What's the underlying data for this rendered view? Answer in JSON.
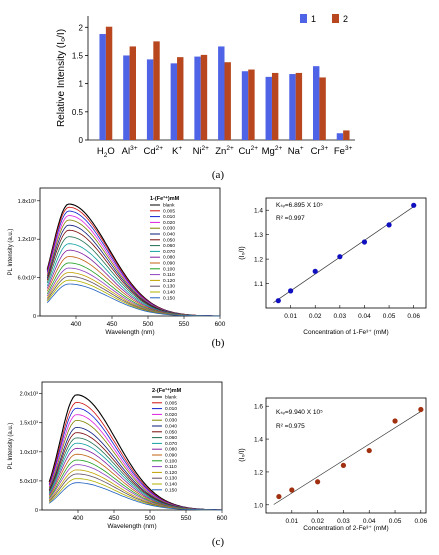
{
  "chart_data": [
    {
      "panel": "(a)",
      "type": "bar",
      "ylabel": "Relative Intensity (I₀/I)",
      "ylim": [
        0,
        2.2
      ],
      "yticks": [
        "0",
        "0.5",
        "1",
        "1.5",
        "2"
      ],
      "categories": [
        "H2O",
        "Al3+",
        "Cd2+",
        "K+",
        "Ni2+",
        "Zn2+",
        "Cu2+",
        "Mg2+",
        "Na+",
        "Cr3+",
        "Fe3+"
      ],
      "category_parts": [
        [
          "H",
          "2",
          "O",
          ""
        ],
        [
          "Al",
          "",
          "",
          "3+"
        ],
        [
          "Cd",
          "",
          "",
          "2+"
        ],
        [
          "K",
          "",
          "",
          "+"
        ],
        [
          "Ni",
          "",
          "",
          "2+"
        ],
        [
          "Zn",
          "",
          "",
          "2+"
        ],
        [
          "Cu",
          "",
          "",
          "2+"
        ],
        [
          "Mg",
          "",
          "",
          "2+"
        ],
        [
          "Na",
          "",
          "",
          "+"
        ],
        [
          "Cr",
          "",
          "",
          "3+"
        ],
        [
          "Fe",
          "",
          "",
          "3+"
        ]
      ],
      "legend_position": "top-right",
      "series": [
        {
          "name": "1",
          "color": "#4f63e6",
          "values": [
            1.88,
            1.5,
            1.43,
            1.36,
            1.48,
            1.66,
            1.22,
            1.12,
            1.17,
            1.31,
            0.12
          ]
        },
        {
          "name": "2",
          "color": "#b8471f",
          "values": [
            2.01,
            1.66,
            1.75,
            1.47,
            1.51,
            1.38,
            1.25,
            1.19,
            1.19,
            1.11,
            0.17
          ]
        }
      ]
    },
    {
      "panel": "(b)",
      "type": "line",
      "xlabel": "Wavelength (nm)",
      "ylabel": "PL Intensity (a.u.)",
      "xlim": [
        350,
        600
      ],
      "xticks": [
        "400",
        "450",
        "500",
        "550",
        "600"
      ],
      "yticks": [
        "0",
        "6.0x10²",
        "1.2x10³",
        "1.8x10³"
      ],
      "ylim": [
        0,
        2000
      ],
      "legend_title": "1-(Fe³⁺)mM",
      "legend": [
        "blank",
        "0.005",
        "0.010",
        "0.020",
        "0.030",
        "0.040",
        "0.050",
        "0.060",
        "0.070",
        "0.080",
        "0.090",
        "0.100",
        "0.110",
        "0.120",
        "0.130",
        "0.140",
        "0.150"
      ],
      "colors": [
        "#000000",
        "#d01010",
        "#1020d0",
        "#e020e0",
        "#808000",
        "#0a1a7a",
        "#7a0a0a",
        "#207050",
        "#10a0a0",
        "#8020a0",
        "#c06010",
        "#20a020",
        "#9040c0",
        "#c0a000",
        "#605060",
        "#b0b000",
        "#2060c0"
      ],
      "peak_x": 390,
      "peaks": [
        1750,
        1700,
        1640,
        1570,
        1500,
        1420,
        1340,
        1240,
        1130,
        1030,
        930,
        830,
        750,
        680,
        620,
        560,
        500
      ]
    },
    {
      "panel": "(b)",
      "type": "scatter",
      "xlabel": "Concentration of 1-Fe³⁺ (mM)",
      "ylabel": "(I₀/I)",
      "xlim": [
        0,
        0.065
      ],
      "ylim": [
        1.0,
        1.45
      ],
      "xticks": [
        "0.01",
        "0.02",
        "0.03",
        "0.04",
        "0.05",
        "0.06"
      ],
      "yticks": [
        "1.1",
        "1.2",
        "1.3",
        "1.4"
      ],
      "annotation_ksv": "Kₛᵥ=6.895 X 10⁵",
      "annotation_r2": "R² =0.997",
      "point_color": "#1010c0",
      "x": [
        0.005,
        0.01,
        0.02,
        0.03,
        0.04,
        0.05,
        0.06
      ],
      "y": [
        1.03,
        1.07,
        1.15,
        1.21,
        1.27,
        1.34,
        1.42
      ]
    },
    {
      "panel": "(c)",
      "type": "line",
      "xlabel": "Wavelength (nm)",
      "ylabel": "PL Intensity (a.u.)",
      "xlim": [
        350,
        600
      ],
      "xticks": [
        "400",
        "450",
        "500",
        "550",
        "600"
      ],
      "yticks": [
        "0",
        "5.0x10²",
        "1.0x10³",
        "1.5x10³",
        "2.0x10³"
      ],
      "ylim": [
        0,
        2200
      ],
      "legend_title": "2-(Fe³⁺)mM",
      "legend": [
        "blank",
        "0.005",
        "0.010",
        "0.020",
        "0.030",
        "0.040",
        "0.050",
        "0.060",
        "0.070",
        "0.080",
        "0.090",
        "0.100",
        "0.110",
        "0.120",
        "0.130",
        "0.140",
        "0.150"
      ],
      "colors": [
        "#000000",
        "#d01010",
        "#1020d0",
        "#e020e0",
        "#808000",
        "#0a1a7a",
        "#7a0a0a",
        "#207050",
        "#10a0a0",
        "#8020a0",
        "#c06010",
        "#20a020",
        "#9040c0",
        "#c0a000",
        "#605060",
        "#b0b000",
        "#2060c0"
      ],
      "peak_x": 398,
      "peaks": [
        1980,
        1850,
        1750,
        1640,
        1540,
        1420,
        1330,
        1240,
        1150,
        1060,
        960,
        860,
        780,
        690,
        620,
        540,
        470
      ]
    },
    {
      "panel": "(c)",
      "type": "scatter",
      "xlabel": "Concentration of 2-Fe³⁺ (mM)",
      "ylabel": "(I₀/I)",
      "xlim": [
        0,
        0.062
      ],
      "ylim": [
        0.95,
        1.65
      ],
      "xticks": [
        "0.01",
        "0.02",
        "0.03",
        "0.04",
        "0.05",
        "0.06"
      ],
      "yticks": [
        "1.0",
        "1.2",
        "1.4",
        "1.6"
      ],
      "annotation_ksv": "Kₛᵥ=9.940 X 10⁵",
      "annotation_r2": "R² =0.975",
      "point_color": "#a03010",
      "x": [
        0.005,
        0.01,
        0.02,
        0.03,
        0.04,
        0.05,
        0.06
      ],
      "y": [
        1.05,
        1.09,
        1.14,
        1.24,
        1.33,
        1.51,
        1.58
      ]
    }
  ]
}
